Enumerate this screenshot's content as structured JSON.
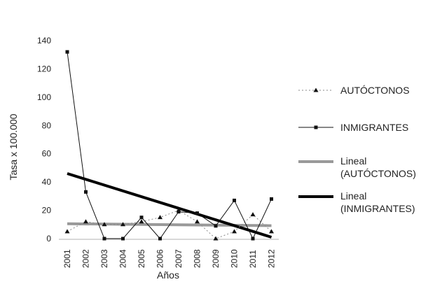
{
  "chart_data": {
    "type": "line",
    "title": "",
    "xlabel": "Años",
    "ylabel": "Tasa x 100.000",
    "categories": [
      "2001",
      "2002",
      "2003",
      "2004",
      "2005",
      "2006",
      "2007",
      "2008",
      "2009",
      "2010",
      "2011",
      "2012"
    ],
    "ylim": [
      0,
      140
    ],
    "yticks": [
      "0",
      "20",
      "40",
      "60",
      "80",
      "100",
      "120",
      "140"
    ],
    "grid": false,
    "legend_position": "right",
    "series": [
      {
        "name": "AUTÓCTONOS",
        "style": "dotted-triangle",
        "color": "#888888",
        "values": [
          5,
          12,
          10,
          10,
          12,
          15,
          20,
          12,
          0,
          5,
          17,
          5
        ]
      },
      {
        "name": "INMIGRANTES",
        "style": "solid-square",
        "color": "#111111",
        "values": [
          132,
          33,
          0,
          0,
          15,
          0,
          19,
          18,
          9,
          27,
          0,
          28
        ]
      },
      {
        "name": "Lineal (AUTÓCTONOS)",
        "legend_lines": [
          "Lineal",
          "(AUTÓCTONOS)"
        ],
        "style": "trend-gray",
        "color": "#999999",
        "values": [
          10.5,
          10.4,
          10.3,
          10.1,
          10.0,
          9.9,
          9.8,
          9.7,
          9.5,
          9.4,
          9.3,
          9.2
        ]
      },
      {
        "name": "Lineal (INMIGRANTES)",
        "legend_lines": [
          "Lineal",
          "(INMIGRANTES)"
        ],
        "style": "trend-black",
        "color": "#000000",
        "values": [
          46,
          41.9,
          37.8,
          33.6,
          29.5,
          25.4,
          21.3,
          17.2,
          13.1,
          9.0,
          4.9,
          1
        ]
      }
    ]
  }
}
